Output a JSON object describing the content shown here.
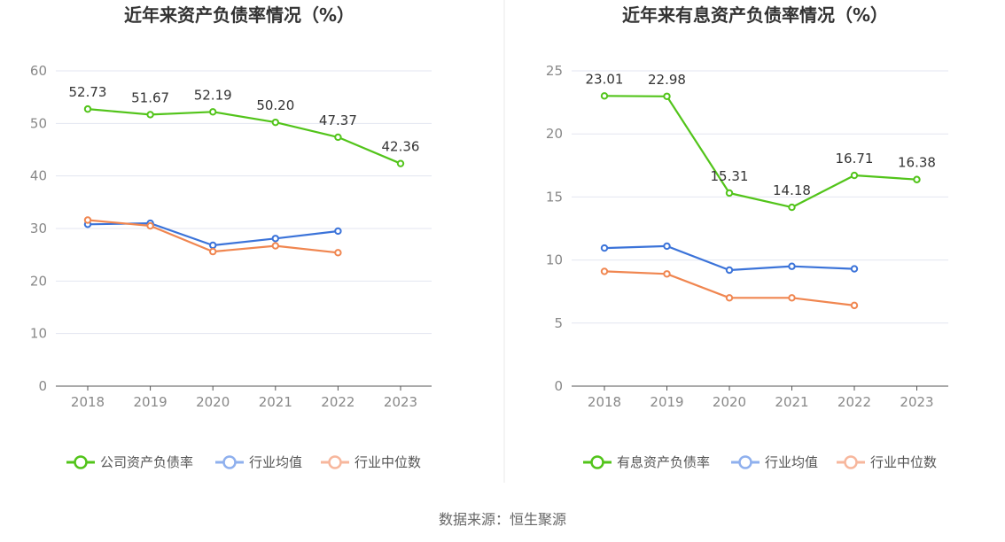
{
  "chart_data": [
    {
      "type": "line",
      "title": "近年来资产负债率情况（%）",
      "categories": [
        "2018",
        "2019",
        "2020",
        "2021",
        "2022",
        "2023"
      ],
      "ylim": [
        0,
        60
      ],
      "yticks": [
        "0",
        "10",
        "20",
        "30",
        "40",
        "50",
        "60"
      ],
      "series": [
        {
          "name": "公司资产负债率",
          "color": "#52c41a",
          "labels": true,
          "values": [
            52.73,
            51.67,
            52.19,
            50.2,
            47.37,
            42.36
          ],
          "value_labels": [
            "52.73",
            "51.67",
            "52.19",
            "50.20",
            "47.37",
            "42.36"
          ]
        },
        {
          "name": "行业均值",
          "color": "#3b73d9",
          "labels": false,
          "values": [
            30.8,
            31.0,
            26.8,
            28.1,
            29.5,
            null
          ]
        },
        {
          "name": "行业中位数",
          "color": "#f08650",
          "labels": false,
          "values": [
            31.6,
            30.5,
            25.6,
            26.7,
            25.4,
            null
          ]
        }
      ]
    },
    {
      "type": "line",
      "title": "近年来有息资产负债率情况（%）",
      "categories": [
        "2018",
        "2019",
        "2020",
        "2021",
        "2022",
        "2023"
      ],
      "ylim": [
        0,
        25
      ],
      "yticks": [
        "0",
        "5",
        "10",
        "15",
        "20",
        "25"
      ],
      "series": [
        {
          "name": "有息资产负债率",
          "color": "#52c41a",
          "labels": true,
          "values": [
            23.01,
            22.98,
            15.31,
            14.18,
            16.71,
            16.38
          ],
          "value_labels": [
            "23.01",
            "22.98",
            "15.31",
            "14.18",
            "16.71",
            "16.38"
          ]
        },
        {
          "name": "行业均值",
          "color": "#3b73d9",
          "labels": false,
          "values": [
            10.95,
            11.1,
            9.2,
            9.5,
            9.3,
            null
          ]
        },
        {
          "name": "行业中位数",
          "color": "#f08650",
          "labels": false,
          "values": [
            9.1,
            8.9,
            7.0,
            7.0,
            6.4,
            null
          ]
        }
      ]
    }
  ],
  "legend_colors": {
    "company": "#52c41a",
    "mean": "#8fb0ee",
    "median": "#f7b79d"
  },
  "source_text": "数据来源：恒生聚源"
}
